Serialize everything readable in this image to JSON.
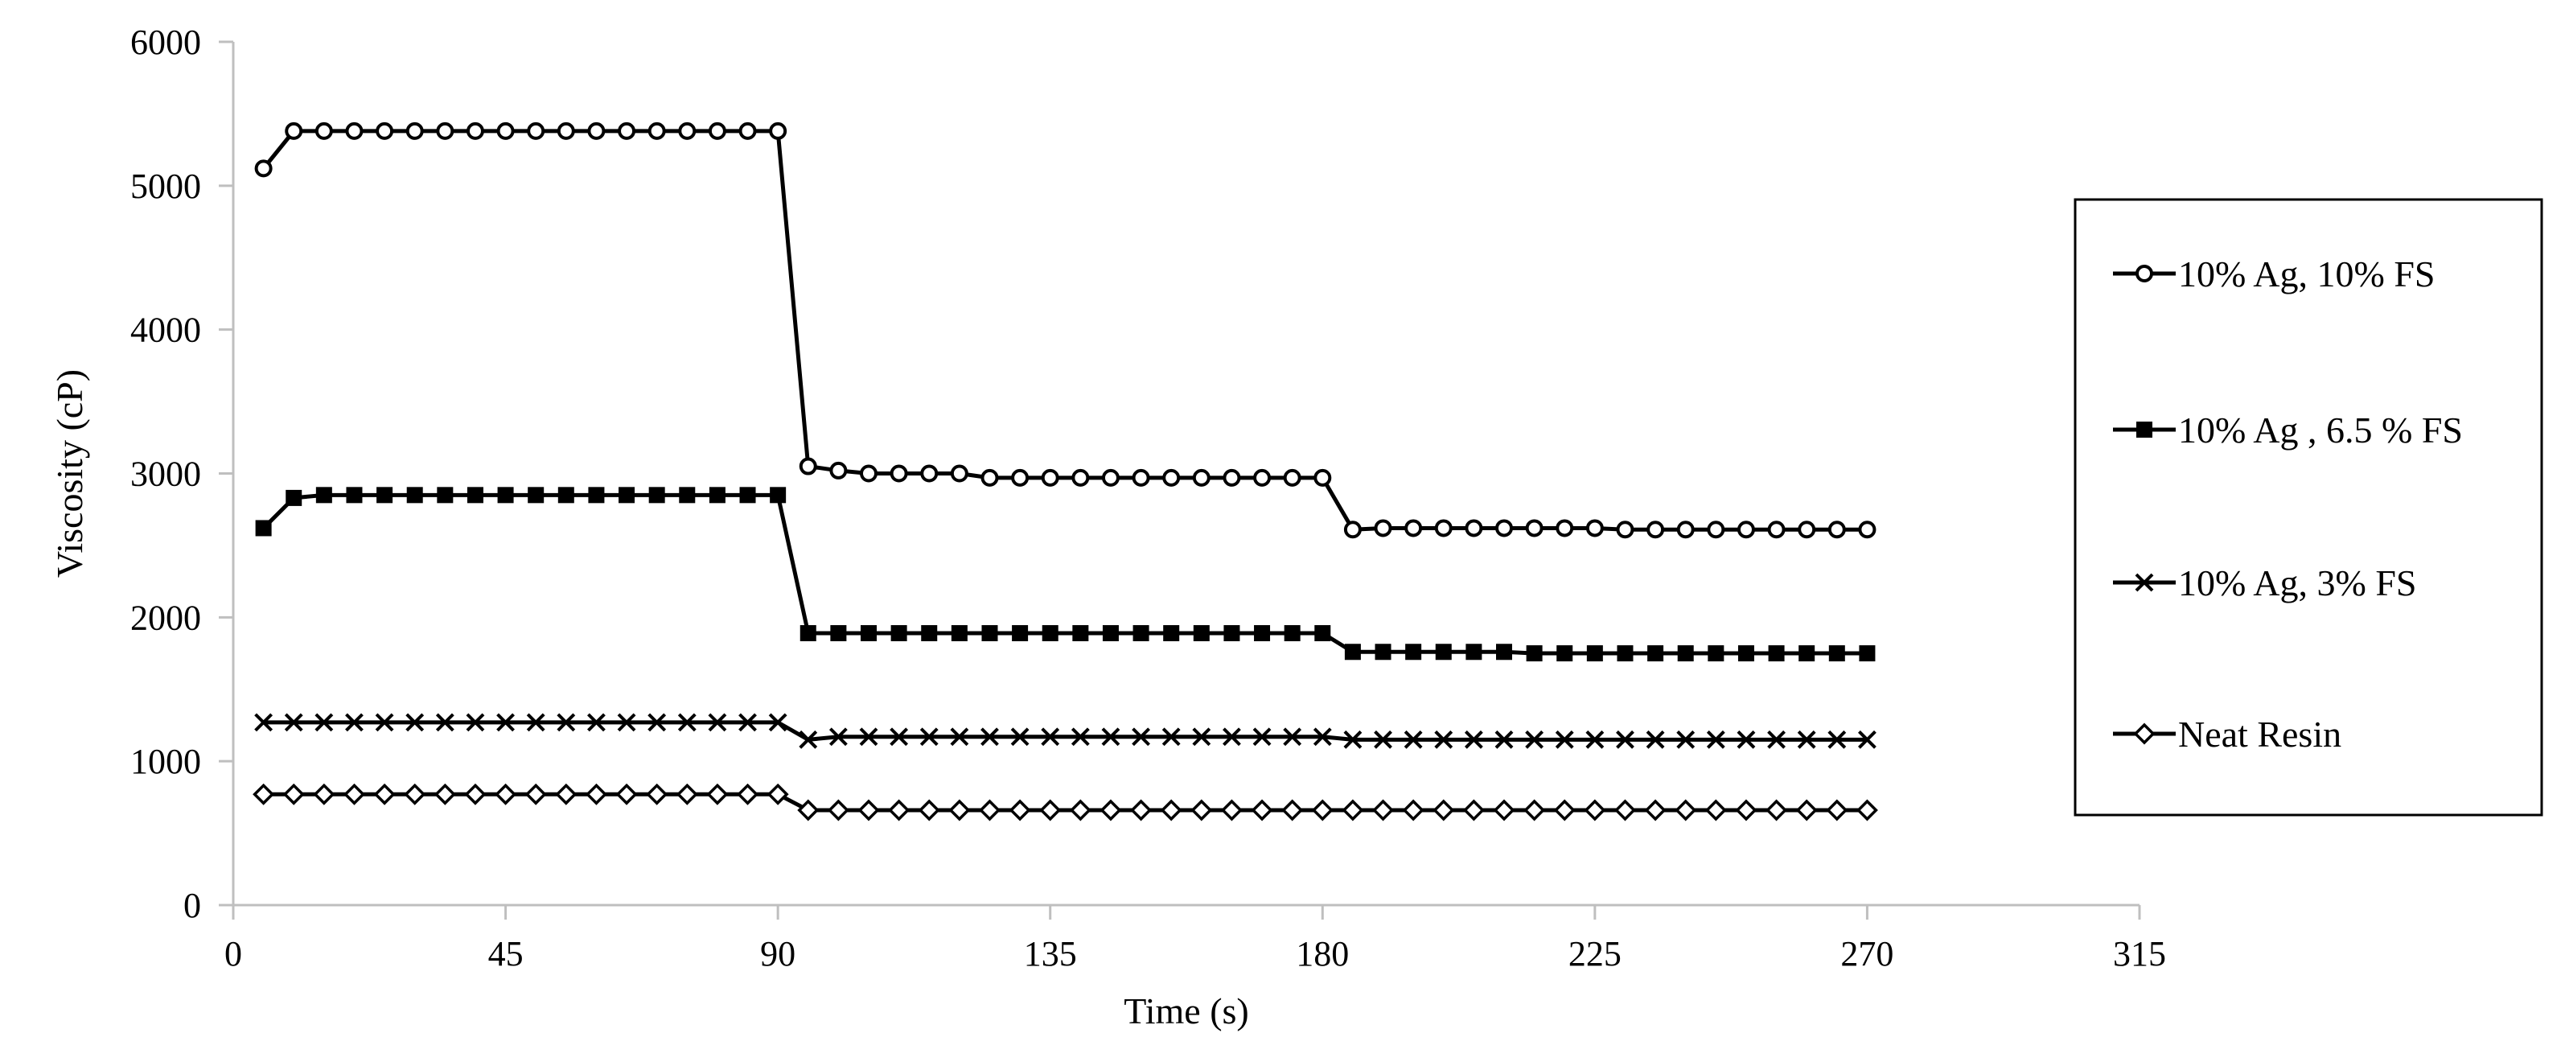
{
  "chart_data": {
    "type": "line",
    "title": "",
    "xlabel": "Time (s)",
    "ylabel": "Viscosity (cP)",
    "xlim": [
      0,
      315
    ],
    "ylim": [
      0,
      6000
    ],
    "xticks": [
      "0",
      "45",
      "90",
      "135",
      "180",
      "225",
      "270",
      "315"
    ],
    "yticks": [
      "0",
      "1000",
      "2000",
      "3000",
      "4000",
      "5000",
      "6000"
    ],
    "grid": false,
    "legend_position": "right",
    "x": [
      5,
      10,
      15,
      20,
      25,
      30,
      35,
      40,
      45,
      50,
      55,
      60,
      65,
      70,
      75,
      80,
      85,
      90,
      95,
      100,
      105,
      110,
      115,
      120,
      125,
      130,
      135,
      140,
      145,
      150,
      155,
      160,
      165,
      170,
      175,
      180,
      185,
      190,
      195,
      200,
      205,
      210,
      215,
      220,
      225,
      230,
      235,
      240,
      245,
      250,
      255,
      260,
      265,
      270
    ],
    "series": [
      {
        "name": "10% Ag, 10% FS",
        "marker": "circle",
        "values": [
          5120,
          5380,
          5380,
          5380,
          5380,
          5380,
          5380,
          5380,
          5380,
          5380,
          5380,
          5380,
          5380,
          5380,
          5380,
          5380,
          5380,
          5380,
          3050,
          3020,
          3000,
          3000,
          3000,
          3000,
          2970,
          2970,
          2970,
          2970,
          2970,
          2970,
          2970,
          2970,
          2970,
          2970,
          2970,
          2970,
          2610,
          2620,
          2620,
          2620,
          2620,
          2620,
          2620,
          2620,
          2620,
          2610,
          2610,
          2610,
          2610,
          2610,
          2610,
          2610,
          2610,
          2610
        ]
      },
      {
        "name": "10% Ag , 6.5 % FS",
        "marker": "square",
        "values": [
          2620,
          2830,
          2850,
          2850,
          2850,
          2850,
          2850,
          2850,
          2850,
          2850,
          2850,
          2850,
          2850,
          2850,
          2850,
          2850,
          2850,
          2850,
          1890,
          1890,
          1890,
          1890,
          1890,
          1890,
          1890,
          1890,
          1890,
          1890,
          1890,
          1890,
          1890,
          1890,
          1890,
          1890,
          1890,
          1890,
          1760,
          1760,
          1760,
          1760,
          1760,
          1760,
          1750,
          1750,
          1750,
          1750,
          1750,
          1750,
          1750,
          1750,
          1750,
          1750,
          1750,
          1750
        ]
      },
      {
        "name": "10% Ag, 3% FS",
        "marker": "x",
        "values": [
          1270,
          1270,
          1270,
          1270,
          1270,
          1270,
          1270,
          1270,
          1270,
          1270,
          1270,
          1270,
          1270,
          1270,
          1270,
          1270,
          1270,
          1270,
          1150,
          1170,
          1170,
          1170,
          1170,
          1170,
          1170,
          1170,
          1170,
          1170,
          1170,
          1170,
          1170,
          1170,
          1170,
          1170,
          1170,
          1170,
          1150,
          1150,
          1150,
          1150,
          1150,
          1150,
          1150,
          1150,
          1150,
          1150,
          1150,
          1150,
          1150,
          1150,
          1150,
          1150,
          1150,
          1150
        ]
      },
      {
        "name": "Neat Resin",
        "marker": "diamond",
        "values": [
          770,
          770,
          770,
          770,
          770,
          770,
          770,
          770,
          770,
          770,
          770,
          770,
          770,
          770,
          770,
          770,
          770,
          770,
          660,
          660,
          660,
          660,
          660,
          660,
          660,
          660,
          660,
          660,
          660,
          660,
          660,
          660,
          660,
          660,
          660,
          660,
          660,
          660,
          660,
          660,
          660,
          660,
          660,
          660,
          660,
          660,
          660,
          660,
          660,
          660,
          660,
          660,
          660,
          660
        ]
      }
    ]
  }
}
